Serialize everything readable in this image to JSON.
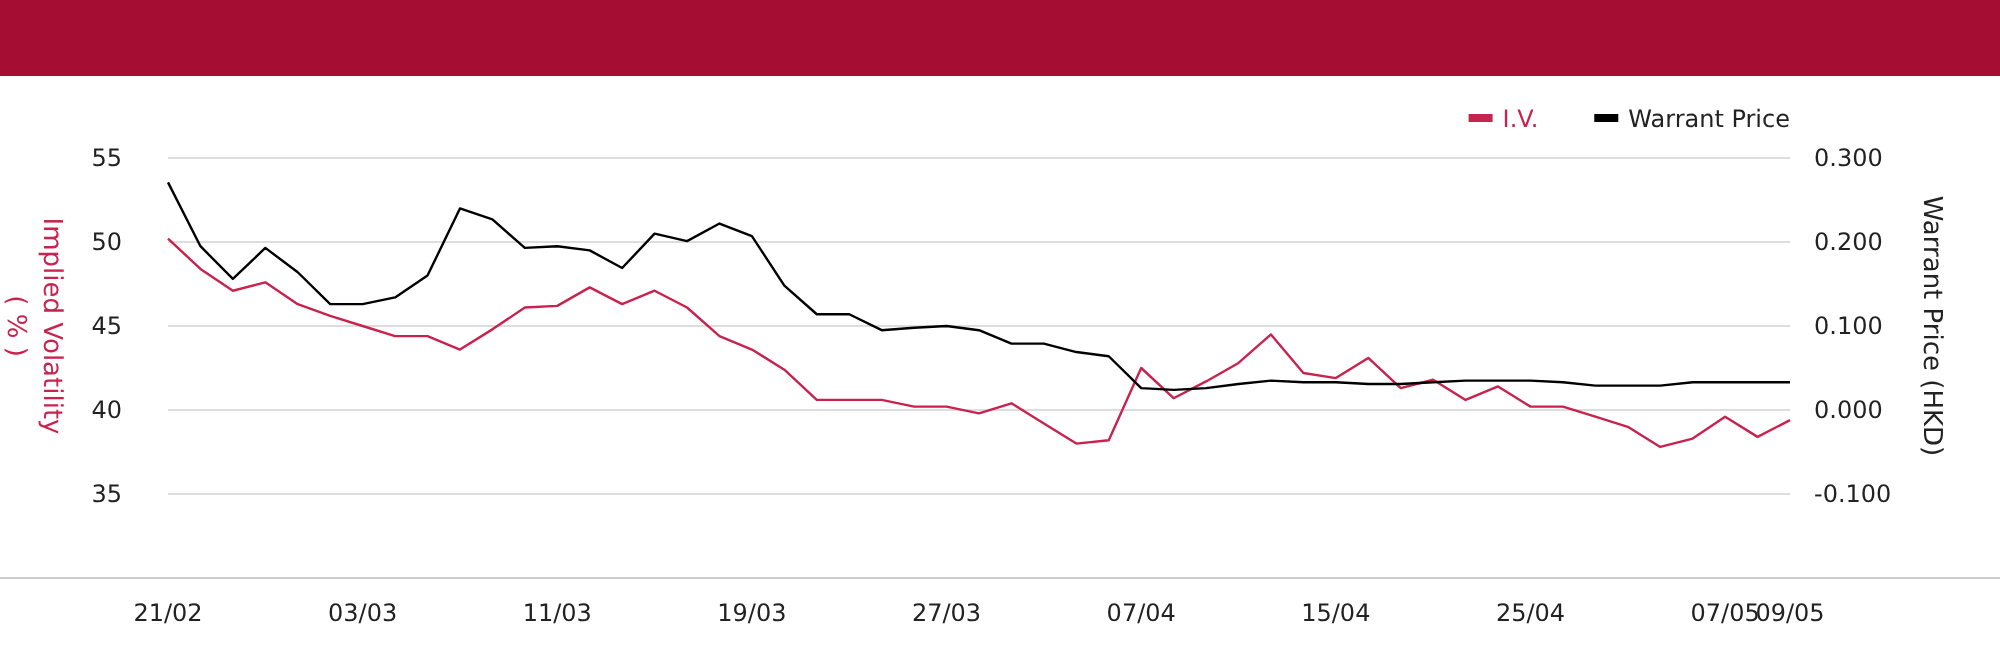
{
  "chart_data": {
    "type": "line",
    "categories": [
      "21/02",
      null,
      null,
      null,
      null,
      null,
      "03/03",
      null,
      null,
      null,
      null,
      null,
      "11/03",
      null,
      null,
      null,
      null,
      null,
      "19/03",
      null,
      null,
      null,
      null,
      null,
      "27/03",
      null,
      null,
      null,
      null,
      null,
      "07/04",
      null,
      null,
      null,
      null,
      null,
      "15/04",
      null,
      null,
      null,
      null,
      null,
      "25/04",
      null,
      null,
      null,
      null,
      null,
      "07/05",
      null,
      "09/05"
    ],
    "series": [
      {
        "name": "I.V.",
        "color": "#c8234f",
        "values": [
          50.2,
          48.4,
          47.1,
          47.6,
          46.3,
          45.6,
          45.0,
          44.4,
          44.4,
          43.6,
          44.8,
          46.1,
          46.2,
          47.3,
          46.3,
          47.1,
          46.1,
          44.4,
          43.6,
          42.4,
          40.6,
          40.6,
          40.6,
          40.2,
          40.2,
          39.8,
          40.4,
          39.2,
          38.0,
          38.2,
          42.5,
          40.7,
          41.7,
          42.8,
          44.5,
          42.2,
          41.9,
          43.1,
          41.3,
          41.8,
          40.6,
          41.4,
          40.2,
          40.2,
          39.6,
          39.0,
          37.8,
          38.3,
          39.6,
          38.4,
          39.4
        ]
      },
      {
        "name": "Warrant Price",
        "color": "#000000",
        "axis": "y2",
        "values": [
          0.271,
          0.195,
          0.156,
          0.193,
          0.164,
          0.126,
          0.126,
          0.134,
          0.16,
          0.24,
          0.227,
          0.193,
          0.195,
          0.19,
          0.169,
          0.21,
          0.201,
          0.222,
          0.207,
          0.148,
          0.114,
          0.114,
          0.095,
          0.098,
          0.1,
          0.095,
          0.079,
          0.079,
          0.069,
          0.064,
          0.026,
          0.024,
          0.026,
          0.031,
          0.035,
          0.033,
          0.033,
          0.031,
          0.031,
          0.033,
          0.035,
          0.035,
          0.035,
          0.033,
          0.029,
          0.029,
          0.029,
          0.033,
          0.033,
          0.033,
          0.033
        ]
      }
    ],
    "ylabel": "Implied Volatility\n( % )",
    "y2label": "Warrant Price (HKD)",
    "ylim": [
      30,
      55
    ],
    "yticks": [
      35,
      40,
      45,
      50,
      55
    ],
    "y2lim": [
      -0.2,
      0.3
    ],
    "y2ticks": [
      {
        "value": -0.1,
        "label": "-0.100"
      },
      {
        "value": 0,
        "label": "0.000"
      },
      {
        "value": 0.1,
        "label": "0.100"
      },
      {
        "value": 0.2,
        "label": "0.200"
      },
      {
        "value": 0.3,
        "label": "0.300"
      }
    ],
    "grid": "y",
    "legend": "top right",
    "marker": "none",
    "line_style": "solid"
  }
}
